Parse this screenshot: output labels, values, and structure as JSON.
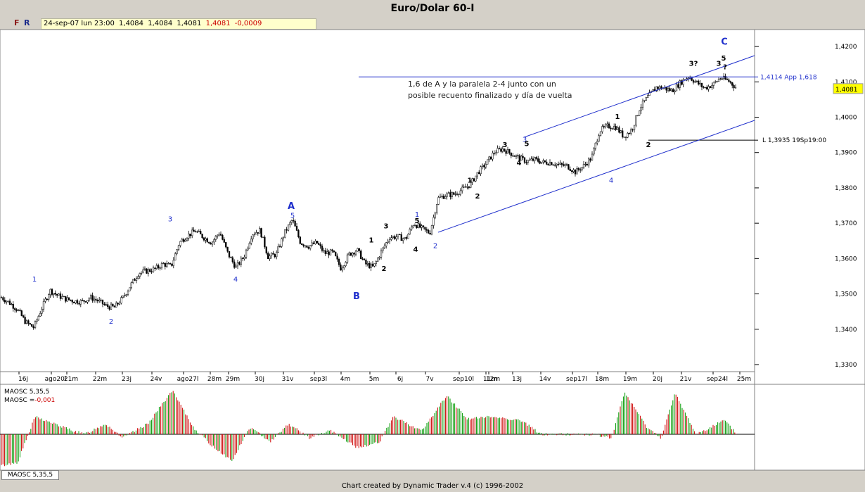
{
  "title": "Euro/Dolar 60-I",
  "toolbar": {
    "f": "F",
    "r": "R"
  },
  "quote": {
    "date": "24-sep-07",
    "time": "lun 23:00",
    "open": "1,4084",
    "high": "1,4084",
    "low": "1,4081",
    "close": "1,4081",
    "change": "-0,0009"
  },
  "chart_data": {
    "type": "candlestick",
    "title": "Euro/Dolar 60-I",
    "ylim": [
      1.328,
      1.4248
    ],
    "yticks": [
      "1,3300",
      "1,3400",
      "1,3500",
      "1,3600",
      "1,3700",
      "1,3800",
      "1,3900",
      "1,4000",
      "1,4100",
      "1,4200"
    ],
    "ytick_values": [
      1.33,
      1.34,
      1.35,
      1.36,
      1.37,
      1.38,
      1.39,
      1.4,
      1.41,
      1.42
    ],
    "last_price": "1,4081",
    "xticks": [
      "16j",
      "ago20l",
      "21m",
      "22m",
      "23j",
      "24v",
      "ago27l",
      "28m",
      "29m",
      "30j",
      "31v",
      "sep3l",
      "4m",
      "5m",
      "6j",
      "7v",
      "sep10l",
      "11m",
      "12m",
      "13j",
      "14v",
      "sep17l",
      "18m",
      "19m",
      "20j",
      "21v",
      "sep24l",
      "25m"
    ],
    "close_path": [
      1.349,
      1.3475,
      1.3455,
      1.342,
      1.3405,
      1.346,
      1.351,
      1.3495,
      1.3485,
      1.348,
      1.3478,
      1.349,
      1.348,
      1.3465,
      1.3462,
      1.3488,
      1.3525,
      1.356,
      1.3565,
      1.357,
      1.3585,
      1.3578,
      1.3645,
      1.3665,
      1.3678,
      1.366,
      1.3645,
      1.3675,
      1.3615,
      1.3575,
      1.3605,
      1.367,
      1.368,
      1.3605,
      1.3612,
      1.3672,
      1.371,
      1.3645,
      1.3635,
      1.3645,
      1.3615,
      1.3618,
      1.3572,
      1.3612,
      1.3625,
      1.3585,
      1.3575,
      1.362,
      1.366,
      1.3662,
      1.3655,
      1.37,
      1.3685,
      1.3672,
      1.377,
      1.378,
      1.3782,
      1.3795,
      1.381,
      1.3845,
      1.387,
      1.3902,
      1.391,
      1.3898,
      1.3885,
      1.3875,
      1.388,
      1.3872,
      1.3872,
      1.3865,
      1.3862,
      1.3845,
      1.3862,
      1.3885,
      1.3962,
      1.3975,
      1.3972,
      1.3945,
      1.3965,
      1.4028,
      1.4058,
      1.4085,
      1.4082,
      1.4075,
      1.4098,
      1.4115,
      1.4098,
      1.4082,
      1.4092,
      1.4112,
      1.4102,
      1.4081
    ],
    "annotations": {
      "note": "1,6 de A y la paralela 2-4 junto con un posible recuento finalizado y día de vuelta",
      "app_line": {
        "label": "1,4114 App 1,618",
        "value": 1.4114
      },
      "l_line": {
        "label": "L 1,3935 19Sp19:00",
        "value": 1.3935
      },
      "waves": [
        {
          "t": "1",
          "x": 49,
          "y": 1.3535,
          "color": "#1f2fcc"
        },
        {
          "t": "2",
          "x": 158,
          "y": 1.3415,
          "color": "#1f2fcc"
        },
        {
          "t": "3",
          "x": 242,
          "y": 1.3705,
          "color": "#1f2fcc"
        },
        {
          "t": "4",
          "x": 335,
          "y": 1.3535,
          "color": "#1f2fcc"
        },
        {
          "t": "5",
          "x": 416,
          "y": 1.3715,
          "color": "#1f2fcc"
        },
        {
          "t": "A",
          "x": 414,
          "y": 1.374,
          "color": "#1f2fcc",
          "big": true
        },
        {
          "t": "B",
          "x": 507,
          "y": 1.3485,
          "color": "#1f2fcc",
          "big": true
        },
        {
          "t": "1",
          "x": 528,
          "y": 1.3645,
          "color": "#000"
        },
        {
          "t": "2",
          "x": 546,
          "y": 1.3565,
          "color": "#000"
        },
        {
          "t": "3",
          "x": 549,
          "y": 1.3685,
          "color": "#000"
        },
        {
          "t": "4",
          "x": 591,
          "y": 1.362,
          "color": "#000"
        },
        {
          "t": "5",
          "x": 593,
          "y": 1.37,
          "color": "#000"
        },
        {
          "t": "1",
          "x": 593,
          "y": 1.3718,
          "color": "#1f2fcc"
        },
        {
          "t": "2",
          "x": 619,
          "y": 1.363,
          "color": "#1f2fcc"
        },
        {
          "t": "1",
          "x": 668,
          "y": 1.3815,
          "color": "#000"
        },
        {
          "t": "2",
          "x": 679,
          "y": 1.377,
          "color": "#000"
        },
        {
          "t": "3",
          "x": 718,
          "y": 1.3915,
          "color": "#000"
        },
        {
          "t": "4",
          "x": 738,
          "y": 1.3865,
          "color": "#000"
        },
        {
          "t": "3",
          "x": 746,
          "y": 1.393,
          "color": "#1f2fcc"
        },
        {
          "t": "5",
          "x": 749,
          "y": 1.3918,
          "color": "#000"
        },
        {
          "t": "1",
          "x": 878,
          "y": 1.3995,
          "color": "#000"
        },
        {
          "t": "2",
          "x": 922,
          "y": 1.3915,
          "color": "#000"
        },
        {
          "t": "4",
          "x": 869,
          "y": 1.3815,
          "color": "#1f2fcc"
        },
        {
          "t": "3?",
          "x": 986,
          "y": 1.4145,
          "color": "#000"
        },
        {
          "t": "3",
          "x": 1022,
          "y": 1.4145,
          "color": "#000"
        },
        {
          "t": "5",
          "x": 1029,
          "y": 1.416,
          "color": "#000"
        },
        {
          "t": "?",
          "x": 1031,
          "y": 1.4135,
          "color": "#000"
        },
        {
          "t": "C",
          "x": 1030,
          "y": 1.4205,
          "color": "#1f2fcc",
          "big": true
        }
      ]
    },
    "oscillator": {
      "name": "MAOSC 5,35,5",
      "value_label": "MAOSC =",
      "value": "-0,001"
    }
  },
  "footer": "Chart created by Dynamic Trader v.4  (c) 1996-2002",
  "tab": "MAOSC 5,35,5"
}
